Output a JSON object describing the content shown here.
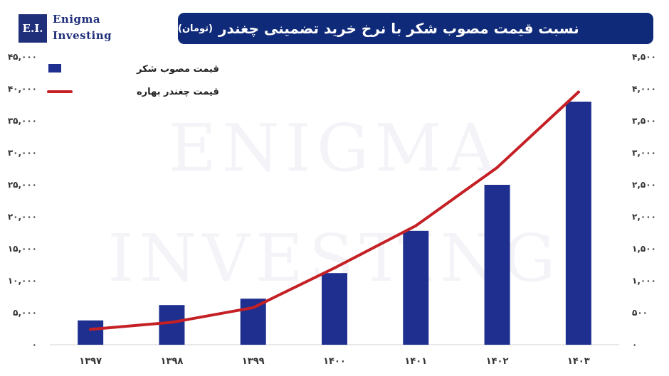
{
  "header": {
    "logo_mark": "E.I.",
    "logo_line1": "Enigma",
    "logo_line2": "Investing",
    "title": "نسبت قیمت مصوب شکر با نرخ خرید تضمینی چغندر",
    "title_unit": "(تومان)",
    "watermark_line1": "ENIGMA",
    "watermark_line2": "INVESTING"
  },
  "colors": {
    "bar": "#1f2f8f",
    "line": "#c42025",
    "title_bg": "#0f2a78",
    "axis_text": "#333333"
  },
  "chart_data": {
    "type": "bar",
    "categories": [
      "۱۳۹۷",
      "۱۳۹۸",
      "۱۳۹۹",
      "۱۴۰۰",
      "۱۴۰۱",
      "۱۴۰۲",
      "۱۴۰۳"
    ],
    "series": [
      {
        "name": "قیمت مصوب شکر",
        "type": "bar",
        "axis": "left",
        "values": [
          3800,
          6200,
          7200,
          11200,
          17800,
          25000,
          38000
        ]
      },
      {
        "name": "قیمت چغندر بهاره",
        "type": "line",
        "axis": "right",
        "values": [
          240,
          350,
          580,
          1200,
          1860,
          2770,
          3950
        ]
      }
    ],
    "y_left": {
      "range": [
        0,
        45000
      ],
      "ticks": [
        0,
        5000,
        10000,
        15000,
        20000,
        25000,
        30000,
        35000,
        40000,
        45000
      ],
      "tick_labels": [
        "۰",
        "۵,۰۰۰",
        "۱۰,۰۰۰",
        "۱۵,۰۰۰",
        "۲۰,۰۰۰",
        "۲۵,۰۰۰",
        "۳۰,۰۰۰",
        "۳۵,۰۰۰",
        "۴۰,۰۰۰",
        "۴۵,۰۰۰"
      ]
    },
    "y_right": {
      "range": [
        0,
        4500
      ],
      "ticks": [
        0,
        500,
        1000,
        1500,
        2000,
        2500,
        3000,
        3500,
        4000,
        4500
      ],
      "tick_labels": [
        "۰",
        "۵۰۰",
        "۱,۰۰۰",
        "۱,۵۰۰",
        "۲,۰۰۰",
        "۲,۵۰۰",
        "۳,۰۰۰",
        "۳,۵۰۰",
        "۴,۰۰۰",
        "۴,۵۰۰"
      ]
    },
    "grid": false,
    "legend": "top-left"
  }
}
